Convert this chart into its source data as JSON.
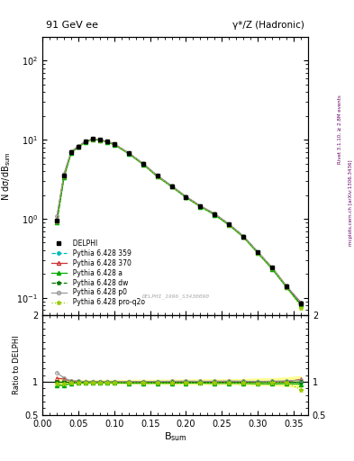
{
  "title_left": "91 GeV ee",
  "title_right": "γ*/Z (Hadronic)",
  "ylabel_main": "N dσ/dB$_\\mathrm{sum}$",
  "ylabel_ratio": "Ratio to DELPHI",
  "xlabel": "B$_\\mathrm{sum}$",
  "right_label_top": "Rivet 3.1.10, ≥ 2.8M events",
  "right_label_bottom": "mcplots.cern.ch [arXiv:1306.3436]",
  "ref_label": "DELPHI_1996_S3430090",
  "bsum_values": [
    0.02,
    0.03,
    0.04,
    0.05,
    0.06,
    0.07,
    0.08,
    0.09,
    0.1,
    0.12,
    0.14,
    0.16,
    0.18,
    0.2,
    0.22,
    0.24,
    0.26,
    0.28,
    0.3,
    0.32,
    0.34,
    0.36
  ],
  "delphi_data": [
    0.95,
    3.5,
    7.0,
    8.2,
    9.5,
    10.2,
    10.0,
    9.5,
    8.8,
    6.8,
    5.0,
    3.5,
    2.6,
    1.9,
    1.45,
    1.15,
    0.85,
    0.6,
    0.38,
    0.24,
    0.14,
    0.085
  ],
  "delphi_err": [
    0.06,
    0.12,
    0.18,
    0.22,
    0.25,
    0.25,
    0.25,
    0.25,
    0.22,
    0.18,
    0.14,
    0.1,
    0.08,
    0.06,
    0.05,
    0.04,
    0.03,
    0.025,
    0.018,
    0.012,
    0.009,
    0.007
  ],
  "pythia359_data": [
    0.95,
    3.5,
    7.0,
    8.2,
    9.5,
    10.2,
    10.0,
    9.5,
    8.8,
    6.8,
    5.0,
    3.5,
    2.6,
    1.9,
    1.45,
    1.15,
    0.85,
    0.6,
    0.38,
    0.24,
    0.14,
    0.085
  ],
  "pythia370_data": [
    1.0,
    3.65,
    7.05,
    8.25,
    9.5,
    10.2,
    10.0,
    9.5,
    8.8,
    6.8,
    5.0,
    3.5,
    2.6,
    1.9,
    1.45,
    1.15,
    0.85,
    0.6,
    0.38,
    0.24,
    0.14,
    0.088
  ],
  "pythiaa_data": [
    0.9,
    3.3,
    6.85,
    8.05,
    9.35,
    10.05,
    9.85,
    9.35,
    8.65,
    6.65,
    4.88,
    3.42,
    2.54,
    1.86,
    1.42,
    1.12,
    0.83,
    0.585,
    0.368,
    0.232,
    0.136,
    0.082
  ],
  "pythiadw_data": [
    0.95,
    3.5,
    7.0,
    8.2,
    9.5,
    10.2,
    10.0,
    9.5,
    8.8,
    6.8,
    5.0,
    3.5,
    2.6,
    1.9,
    1.45,
    1.15,
    0.85,
    0.6,
    0.38,
    0.24,
    0.14,
    0.085
  ],
  "pythiap0_data": [
    1.08,
    3.7,
    7.1,
    8.3,
    9.52,
    10.22,
    10.02,
    9.52,
    8.82,
    6.82,
    5.02,
    3.52,
    2.62,
    1.92,
    1.46,
    1.16,
    0.86,
    0.605,
    0.382,
    0.242,
    0.142,
    0.087
  ],
  "pythiapro_data": [
    0.92,
    3.4,
    6.92,
    8.12,
    9.42,
    10.12,
    9.92,
    9.42,
    8.72,
    6.72,
    4.92,
    3.44,
    2.56,
    1.87,
    1.43,
    1.13,
    0.835,
    0.59,
    0.372,
    0.238,
    0.138,
    0.075
  ],
  "ratio_band_color": "#ffff88",
  "colors": {
    "delphi": "#000000",
    "p359": "#00bbbb",
    "p370": "#cc3333",
    "pa": "#00aa00",
    "pdw": "#007700",
    "pp0": "#999999",
    "ppro": "#99cc00"
  },
  "ylim_main": [
    0.06,
    200
  ],
  "ylim_ratio": [
    0.5,
    2.0
  ],
  "xlim": [
    0.0,
    0.37
  ]
}
